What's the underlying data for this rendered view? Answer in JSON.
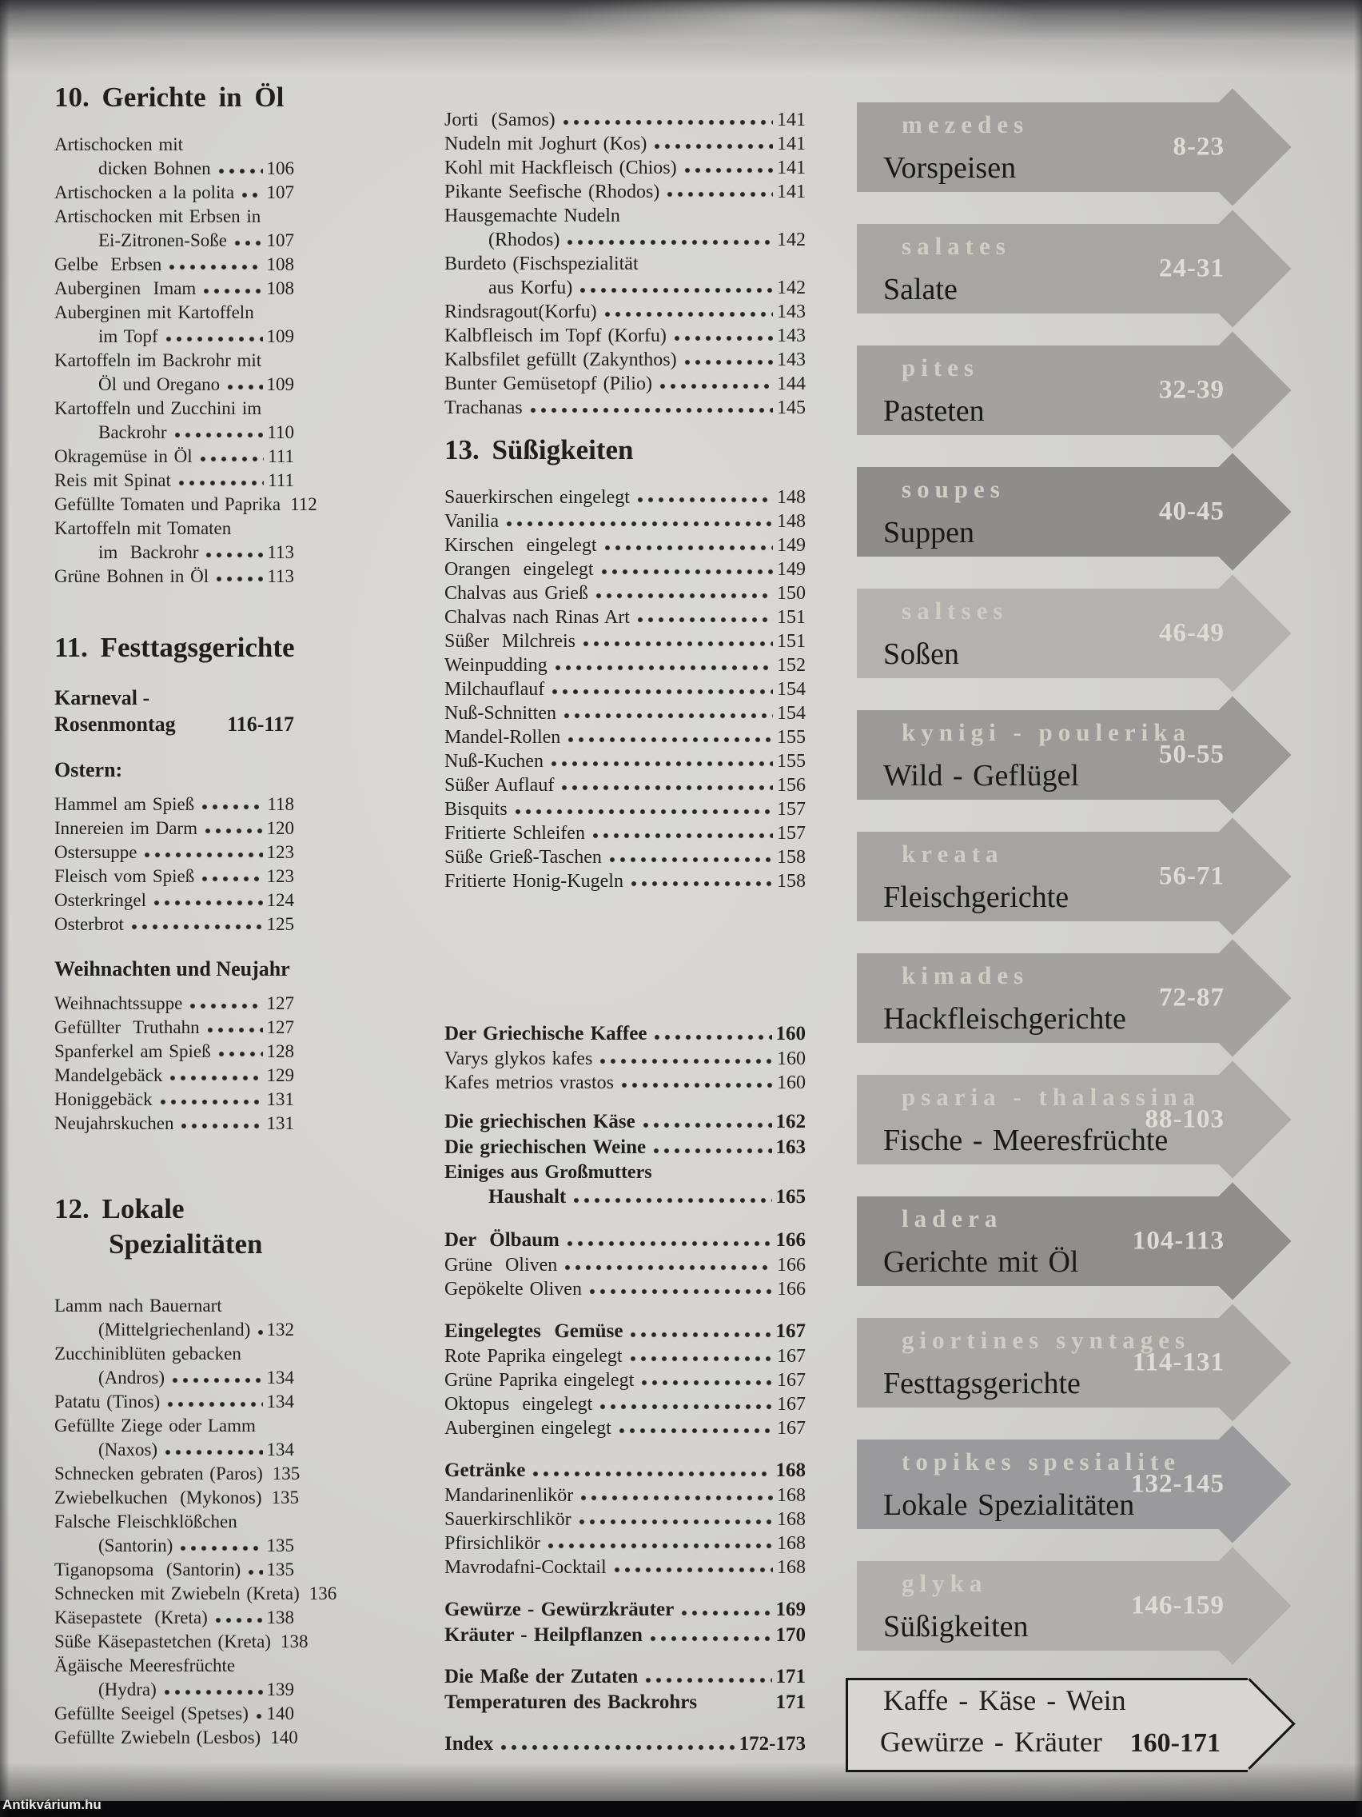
{
  "watermark": "Antikvárium.hu",
  "colors": {
    "paper": "#d4d3cf",
    "ink": "#201f1b",
    "banner_dark": "#8e8d8b",
    "banner_light": "#b3b2ae",
    "banner_text_light": "#cfcec5",
    "range_text": "#deddd5"
  },
  "left_column": [
    {
      "kind": "h1",
      "text": "10. Gerichte in Öl"
    },
    {
      "kind": "item2",
      "line1": "Artischocken mit",
      "line2": "dicken Bohnen",
      "page": "106"
    },
    {
      "kind": "item",
      "text": "Artischocken a la polita",
      "page": "107"
    },
    {
      "kind": "item2",
      "line1": "Artischocken mit Erbsen in",
      "line2": "Ei-Zitronen-Soße",
      "page": "107"
    },
    {
      "kind": "item",
      "text": "Gelbe  Erbsen",
      "page": "108"
    },
    {
      "kind": "item",
      "text": "Auberginen  Imam",
      "page": "108"
    },
    {
      "kind": "item2",
      "line1": "Auberginen mit Kartoffeln",
      "line2": "im Topf",
      "page": "109"
    },
    {
      "kind": "item2",
      "line1": "Kartoffeln im Backrohr mit",
      "line2": "Öl und Oregano",
      "page": "109"
    },
    {
      "kind": "item2",
      "line1": "Kartoffeln und Zucchini im",
      "line2": "Backrohr",
      "page": "110"
    },
    {
      "kind": "item",
      "text": "Okragemüse in Öl",
      "page": "111"
    },
    {
      "kind": "item",
      "text": "Reis mit Spinat",
      "page": "111"
    },
    {
      "kind": "item",
      "text": "Gefüllte Tomaten und Paprika",
      "page": "112"
    },
    {
      "kind": "item2",
      "line1": "Kartoffeln mit Tomaten",
      "line2": "im  Backrohr",
      "page": "113"
    },
    {
      "kind": "item",
      "text": "Grüne Bohnen in Öl",
      "page": "113"
    },
    {
      "kind": "h1",
      "text": "11. Festtagsgerichte",
      "mt": 52
    },
    {
      "kind": "sub2",
      "line1": "Karneval -",
      "line2": "Rosenmontag",
      "page": "116-117"
    },
    {
      "kind": "sub",
      "text": "Ostern:"
    },
    {
      "kind": "item",
      "text": "Hammel am Spieß",
      "page": "118"
    },
    {
      "kind": "item",
      "text": "Innereien im Darm",
      "page": "120"
    },
    {
      "kind": "item",
      "text": "Ostersuppe",
      "page": "123"
    },
    {
      "kind": "item",
      "text": "Fleisch vom Spieß",
      "page": "123"
    },
    {
      "kind": "item",
      "text": "Osterkringel",
      "page": "124"
    },
    {
      "kind": "item",
      "text": "Osterbrot",
      "page": "125"
    },
    {
      "kind": "sub",
      "text": "Weihnachten und Neujahr"
    },
    {
      "kind": "item",
      "text": "Weihnachtssuppe",
      "page": "127"
    },
    {
      "kind": "item",
      "text": "Gefüllter  Truthahn",
      "page": "127"
    },
    {
      "kind": "item",
      "text": "Spanferkel am Spieß",
      "page": "128"
    },
    {
      "kind": "item",
      "text": "Mandelgebäck",
      "page": "129"
    },
    {
      "kind": "item",
      "text": "Honiggebäck",
      "page": "131"
    },
    {
      "kind": "item",
      "text": "Neujahrskuchen",
      "page": "131"
    },
    {
      "kind": "h1b",
      "line1": "12. Lokale",
      "line2": "Spezialitäten",
      "mt": 70
    },
    {
      "kind": "item2",
      "line1": "Lamm nach Bauernart",
      "line2": "(Mittelgriechenland)",
      "page": "132"
    },
    {
      "kind": "item2",
      "line1": "Zucchiniblüten gebacken",
      "line2": "(Andros)",
      "page": "134"
    },
    {
      "kind": "item",
      "text": "Patatu (Tinos)",
      "page": "134"
    },
    {
      "kind": "item2",
      "line1": "Gefüllte Ziege oder Lamm",
      "line2": "(Naxos)",
      "page": "134"
    },
    {
      "kind": "item",
      "text": "Schnecken gebraten (Paros)",
      "page": "135"
    },
    {
      "kind": "item",
      "text": "Zwiebelkuchen  (Mykonos)",
      "page": "135"
    },
    {
      "kind": "item2",
      "line1": "Falsche Fleischklößchen",
      "line2": "(Santorin)",
      "page": "135"
    },
    {
      "kind": "item",
      "text": "Tiganopsoma  (Santorin)",
      "page": "135"
    },
    {
      "kind": "item",
      "text": "Schnecken mit Zwiebeln (Kreta)",
      "page": "136"
    },
    {
      "kind": "item",
      "text": "Käsepastete  (Kreta)",
      "page": "138"
    },
    {
      "kind": "item",
      "text": "Süße Käsepastetchen (Kreta)",
      "page": "138"
    },
    {
      "kind": "item2",
      "line1": "Ägäische Meeresfrüchte",
      "line2": "(Hydra)",
      "page": "139"
    },
    {
      "kind": "item",
      "text": "Gefüllte Seeigel (Spetses)",
      "page": "140"
    },
    {
      "kind": "item",
      "text": "Gefüllte Zwiebeln (Lesbos)",
      "page": "140"
    }
  ],
  "middle_column": [
    {
      "kind": "item",
      "text": "Jorti  (Samos)",
      "page": "141"
    },
    {
      "kind": "item",
      "text": "Nudeln mit Joghurt (Kos)",
      "page": "141"
    },
    {
      "kind": "item",
      "text": "Kohl mit Hackfleisch (Chios)",
      "page": "141"
    },
    {
      "kind": "item",
      "text": "Pikante Seefische (Rhodos)",
      "page": "141"
    },
    {
      "kind": "item2",
      "line1": "Hausgemachte Nudeln",
      "line2": "(Rhodos)",
      "page": "142"
    },
    {
      "kind": "item2",
      "line1": "Burdeto (Fischspezialität",
      "line2": "aus Korfu)",
      "page": "142"
    },
    {
      "kind": "item",
      "text": "Rindsragout(Korfu)",
      "page": "143"
    },
    {
      "kind": "item",
      "text": "Kalbfleisch im Topf (Korfu)",
      "page": "143"
    },
    {
      "kind": "item",
      "text": "Kalbsfilet gefüllt (Zakynthos)",
      "page": "143"
    },
    {
      "kind": "item",
      "text": "Bunter Gemüsetopf (Pilio)",
      "page": "144"
    },
    {
      "kind": "item",
      "text": "Trachanas",
      "page": "145"
    },
    {
      "kind": "h1",
      "text": "13. Süßigkeiten",
      "mt": 16
    },
    {
      "kind": "item",
      "text": "Sauerkirschen eingelegt",
      "page": "148"
    },
    {
      "kind": "item",
      "text": "Vanilia",
      "page": "148"
    },
    {
      "kind": "item",
      "text": "Kirschen  eingelegt",
      "page": "149"
    },
    {
      "kind": "item",
      "text": "Orangen  eingelegt",
      "page": "149"
    },
    {
      "kind": "item",
      "text": "Chalvas aus Grieß",
      "page": "150"
    },
    {
      "kind": "item",
      "text": "Chalvas nach Rinas Art",
      "page": "151"
    },
    {
      "kind": "item",
      "text": "Süßer  Milchreis",
      "page": "151"
    },
    {
      "kind": "item",
      "text": "Weinpudding",
      "page": "152"
    },
    {
      "kind": "item",
      "text": "Milchauflauf",
      "page": "154"
    },
    {
      "kind": "item",
      "text": "Nuß-Schnitten",
      "page": "154"
    },
    {
      "kind": "item",
      "text": "Mandel-Rollen",
      "page": "155"
    },
    {
      "kind": "item",
      "text": "Nuß-Kuchen",
      "page": "155"
    },
    {
      "kind": "item",
      "text": "Süßer Auflauf",
      "page": "156"
    },
    {
      "kind": "item",
      "text": "Bisquits",
      "page": "157"
    },
    {
      "kind": "item",
      "text": "Fritierte Schleifen",
      "page": "157"
    },
    {
      "kind": "item",
      "text": "Süße Grieß-Taschen",
      "page": "158"
    },
    {
      "kind": "item",
      "text": "Fritierte Honig-Kugeln",
      "page": "158"
    },
    {
      "kind": "gap",
      "h": 160
    },
    {
      "kind": "bold",
      "text": "Der Griechische Kaffee",
      "page": "160"
    },
    {
      "kind": "item",
      "text": "Varys glykos kafes",
      "page": "160"
    },
    {
      "kind": "item",
      "text": "Kafes metrios vrastos",
      "page": "160"
    },
    {
      "kind": "gap",
      "h": 18
    },
    {
      "kind": "bold",
      "text": "Die griechischen Käse",
      "page": "162"
    },
    {
      "kind": "bold",
      "text": "Die griechischen Weine",
      "page": "163"
    },
    {
      "kind": "bold2",
      "line1": "Einiges aus Großmutters",
      "line2": "Haushalt",
      "page": "165"
    },
    {
      "kind": "gap",
      "h": 22
    },
    {
      "kind": "bold",
      "text": "Der  Ölbaum",
      "page": "166"
    },
    {
      "kind": "item",
      "text": "Grüne  Oliven",
      "page": "166"
    },
    {
      "kind": "item",
      "text": "Gepökelte Oliven",
      "page": "166"
    },
    {
      "kind": "gap",
      "h": 22
    },
    {
      "kind": "bold",
      "text": "Eingelegtes  Gemüse",
      "page": "167"
    },
    {
      "kind": "item",
      "text": "Rote Paprika eingelegt",
      "page": "167"
    },
    {
      "kind": "item",
      "text": "Grüne Paprika eingelegt",
      "page": "167"
    },
    {
      "kind": "item",
      "text": "Oktopus  eingelegt",
      "page": "167"
    },
    {
      "kind": "item",
      "text": "Auberginen eingelegt",
      "page": "167"
    },
    {
      "kind": "gap",
      "h": 22
    },
    {
      "kind": "bold",
      "text": "Getränke",
      "page": "168"
    },
    {
      "kind": "item",
      "text": "Mandarinenlikör",
      "page": "168"
    },
    {
      "kind": "item",
      "text": "Sauerkirschlikör",
      "page": "168"
    },
    {
      "kind": "item",
      "text": "Pfirsichlikör",
      "page": "168"
    },
    {
      "kind": "item",
      "text": "Mavrodafni-Cocktail",
      "page": "168"
    },
    {
      "kind": "gap",
      "h": 22
    },
    {
      "kind": "bold",
      "text": "Gewürze - Gewürzkräuter",
      "page": "169"
    },
    {
      "kind": "bold",
      "text": "Kräuter - Heilpflanzen",
      "page": "170"
    },
    {
      "kind": "gap",
      "h": 20
    },
    {
      "kind": "bold",
      "text": "Die Maße der Zutaten",
      "page": "171"
    },
    {
      "kind": "bold",
      "text": "Temperaturen des Backrohrs",
      "page": "171",
      "nodots": true
    },
    {
      "kind": "gap",
      "h": 20
    },
    {
      "kind": "bold",
      "text": "Index",
      "page": "172-173"
    }
  ],
  "banners": [
    {
      "greek": "mezedes",
      "german": "Vorspeisen",
      "range": "8-23",
      "color": "#a2a19d"
    },
    {
      "greek": "salates",
      "german": "Salate",
      "range": "24-31",
      "color": "#a7a6a2"
    },
    {
      "greek": "pites",
      "german": "Pasteten",
      "range": "32-39",
      "color": "#a3a29e"
    },
    {
      "greek": "soupes",
      "german": "Suppen",
      "range": "40-45",
      "color": "#8e8d8b"
    },
    {
      "greek": "saltses",
      "german": "Soßen",
      "range": "46-49",
      "color": "#b3b2ae"
    },
    {
      "greek": "kynigi - poulerika",
      "german": "Wild - Geflügel",
      "range": "50-55",
      "color": "#9b9a97"
    },
    {
      "greek": "kreata",
      "german": "Fleischgerichte",
      "range": "56-71",
      "color": "#a5a4a0"
    },
    {
      "greek": "kimades",
      "german": "Hackfleischgerichte",
      "range": "72-87",
      "color": "#a3a29f"
    },
    {
      "greek": "psaria - thalassina",
      "german": "Fische - Meeresfrüchte",
      "range": "88-103",
      "color": "#acaba7"
    },
    {
      "greek": "ladera",
      "german": "Gerichte mit Öl",
      "range": "104-113",
      "color": "#8f8e8c"
    },
    {
      "greek": "giortines syntages",
      "german": "Festtagsgerichte",
      "range": "114-131",
      "color": "#a8a7a3"
    },
    {
      "greek": "topikes spesialite",
      "german": "Lokale Spezialitäten",
      "range": "132-145",
      "color": "#9a999c"
    },
    {
      "greek": "glyka",
      "german": "Süßigkeiten",
      "range": "146-159",
      "color": "#b1b0ac"
    }
  ],
  "box": {
    "line1": "Kaffe - Käse - Wein",
    "line2": "Gewürze - Kräuter",
    "range": "160-171"
  }
}
